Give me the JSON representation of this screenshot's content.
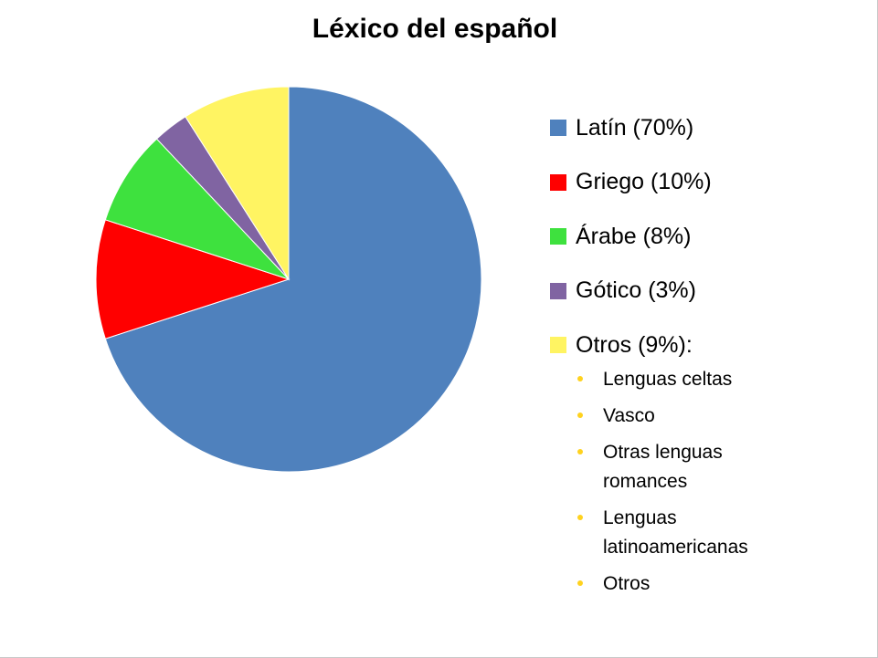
{
  "chart_data": {
    "type": "pie",
    "title": "Léxico del español",
    "categories": [
      "Latín (70%)",
      "Griego (10%)",
      "Árabe (8%)",
      "Gótico (3%)",
      "Otros (9%):"
    ],
    "values": [
      70,
      10,
      8,
      3,
      9
    ],
    "colors": [
      "#4f81bd",
      "#ff0000",
      "#3ee13e",
      "#8064a2",
      "#fff462"
    ],
    "notes": [
      "Lenguas celtas",
      "Vasco",
      "Otras lenguas romances",
      "Lenguas latinoamericanas",
      "Otros"
    ],
    "note_bullet_color": "#ffd21f"
  }
}
